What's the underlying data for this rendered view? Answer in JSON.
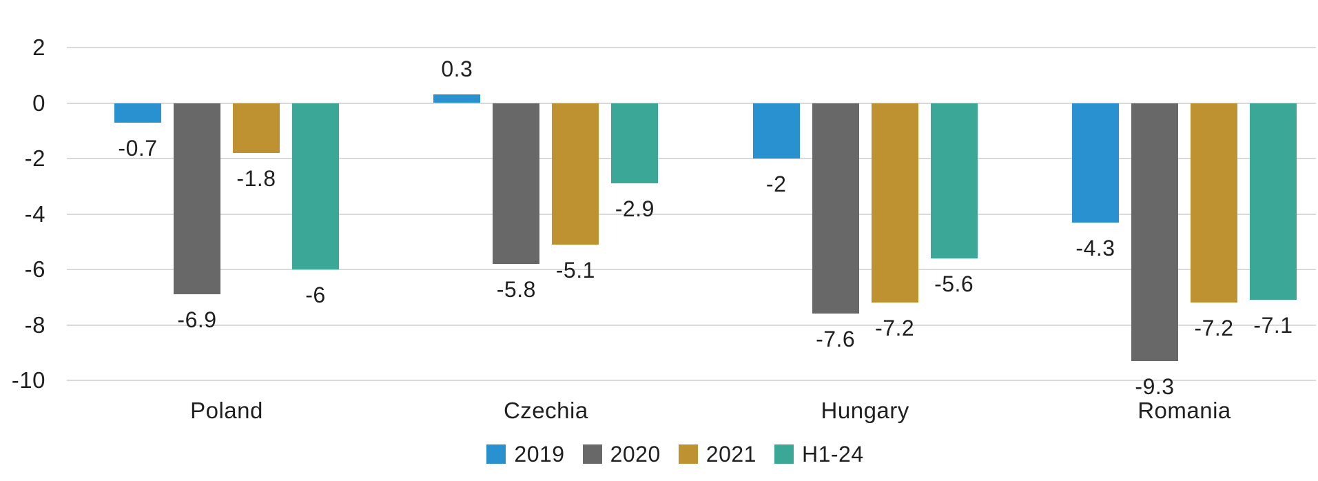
{
  "chart_data": {
    "type": "bar",
    "title": "",
    "xlabel": "",
    "ylabel": "",
    "grid": true,
    "legend_position": "bottom",
    "data_labels_shown": true,
    "categories": [
      "Poland",
      "Czechia",
      "Hungary",
      "Romania"
    ],
    "series": [
      {
        "name": "2019",
        "color": "#2A91D0",
        "values": [
          -0.7,
          0.3,
          -2,
          -4.3
        ],
        "labels": [
          "-0.7",
          "0.3",
          "-2",
          "-4.3"
        ]
      },
      {
        "name": "2020",
        "color": "#686868",
        "values": [
          -6.9,
          -5.8,
          -7.6,
          -9.3
        ],
        "labels": [
          "-6.9",
          "-5.8",
          "-7.6",
          "-9.3"
        ]
      },
      {
        "name": "2021",
        "color": "#BF9231",
        "values": [
          -1.8,
          -5.1,
          -7.2,
          -7.2
        ],
        "labels": [
          "-1.8",
          "-5.1",
          "-7.2",
          "-7.2"
        ]
      },
      {
        "name": "H1-24",
        "color": "#3BA796",
        "values": [
          -6,
          -2.9,
          -5.6,
          -7.1
        ],
        "labels": [
          "-6",
          "-2.9",
          "-5.6",
          "-7.1"
        ]
      }
    ],
    "y_ticks": [
      {
        "value": 2,
        "label": "2"
      },
      {
        "value": 0,
        "label": "0"
      },
      {
        "value": -2,
        "label": "-2"
      },
      {
        "value": -4,
        "label": "-4"
      },
      {
        "value": -6,
        "label": "-6"
      },
      {
        "value": -8,
        "label": "-8"
      },
      {
        "value": -10,
        "label": "-10"
      }
    ],
    "ylim": [
      -10,
      2
    ]
  },
  "colors": {
    "background": "#FFFFFF",
    "gridline": "#D9D9D9",
    "text": "#1F1F1F"
  }
}
